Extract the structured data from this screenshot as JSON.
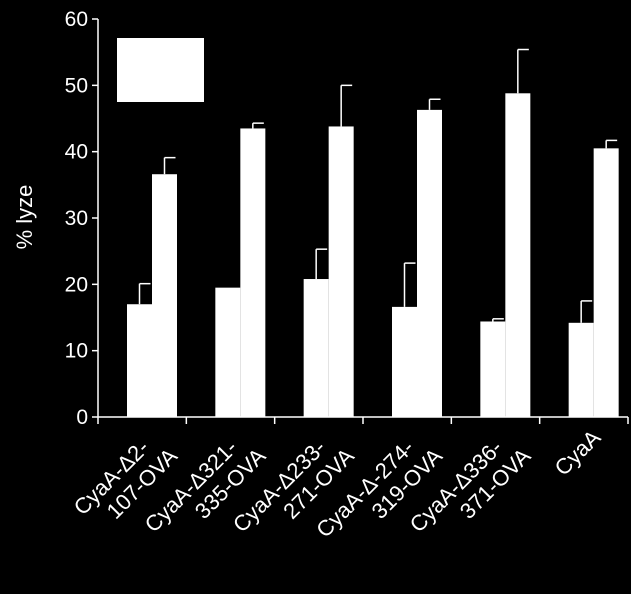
{
  "colors": {
    "background": "#000000",
    "foreground": "#ffffff",
    "bar": "#ffffff"
  },
  "chart_data": {
    "type": "bar",
    "title": "",
    "xlabel": "",
    "ylabel": "% lyze",
    "ylim": [
      0,
      60
    ],
    "yticks": [
      0,
      10,
      20,
      30,
      40,
      50,
      60
    ],
    "grid": false,
    "legend": "top-left box, entries not legible",
    "categories": [
      "CyaA-Δ2-\n107-OVA",
      "CyaA-Δ321-\n335-OVA",
      "CyaA-Δ233-\n271-OVA",
      "CyaA-Δ-274-\n319-OVA",
      "CyaA-Δ336-\n371-OVA",
      "CyaA"
    ],
    "series": [
      {
        "values": [
          17.0,
          19.5,
          20.8,
          16.6,
          14.4,
          14.2
        ],
        "errors": [
          3.1,
          0,
          4.5,
          6.6,
          0.4,
          3.3
        ]
      },
      {
        "values": [
          36.6,
          43.5,
          43.8,
          46.3,
          48.8,
          40.5
        ],
        "errors": [
          2.5,
          0.8,
          6.2,
          1.6,
          6.6,
          1.2
        ]
      }
    ]
  }
}
